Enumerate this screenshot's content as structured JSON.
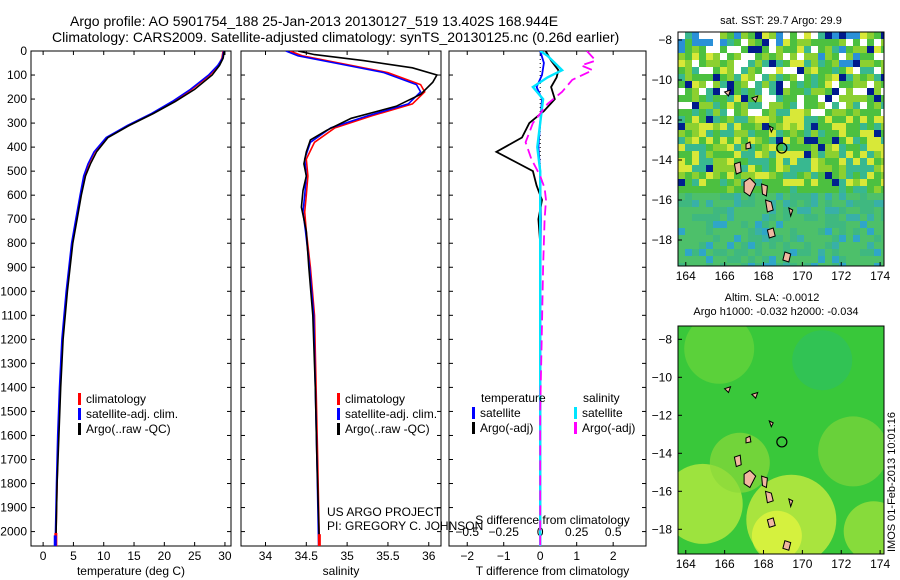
{
  "header": {
    "line1": "Argo profile: AO 5901754_188 25-Jan-2013 20130127_519 13.402S 168.944E",
    "line2": "Climatology: CARS2009. Satellite-adjusted climatology: synTS_20130125.nc (0.26d earlier)"
  },
  "colors": {
    "climatology": "#ff0000",
    "satellite": "#0000ff",
    "argo": "#000000",
    "sat_salinity": "#00e5ff",
    "argo_salinity": "#ff00ff"
  },
  "credit": {
    "line1": "US ARGO PROJECT",
    "line2": "PI: GREGORY C. JOHNSON"
  },
  "footer_stamp": "IMOS 01-Feb-2013 10:01:16",
  "chart_data": [
    {
      "type": "line",
      "id": "temperature",
      "xlabel": "temperature (deg C)",
      "ylabel": "",
      "xlim": [
        -2,
        31
      ],
      "ylim": [
        2060,
        0
      ],
      "xticks": [
        0,
        5,
        10,
        15,
        20,
        25,
        30
      ],
      "xtick_labels": [
        "0",
        "5",
        "10",
        "15",
        "20",
        "25",
        "30"
      ],
      "yticks": [
        0,
        100,
        200,
        300,
        400,
        500,
        600,
        700,
        800,
        900,
        1000,
        1100,
        1200,
        1300,
        1400,
        1500,
        1600,
        1700,
        1800,
        1900,
        2000
      ],
      "ytick_labels": [
        "0",
        "100",
        "200",
        "300",
        "400",
        "500",
        "600",
        "700",
        "800",
        "900",
        "1000",
        "1100",
        "1200",
        "1300",
        "1400",
        "1500",
        "1600",
        "1700",
        "1800",
        "1900",
        "2000"
      ],
      "legend": [
        "climatology",
        "satellite-adj. clim.",
        "Argo(..raw -QC)"
      ],
      "series": [
        {
          "name": "climatology",
          "color": "#ff0000",
          "values": [
            [
              29.7,
              0
            ],
            [
              29.5,
              30
            ],
            [
              28.9,
              60
            ],
            [
              27.5,
              100
            ],
            [
              24.5,
              160
            ],
            [
              21.5,
              210
            ],
            [
              18,
              260
            ],
            [
              14,
              310
            ],
            [
              10.5,
              360
            ],
            [
              8.5,
              420
            ],
            [
              7.5,
              470
            ],
            [
              6.8,
              520
            ],
            [
              6.2,
              600
            ],
            [
              5.5,
              700
            ],
            [
              4.8,
              800
            ],
            [
              3.9,
              1000
            ],
            [
              3.2,
              1200
            ],
            [
              2.8,
              1400
            ],
            [
              2.5,
              1600
            ],
            [
              2.3,
              1800
            ],
            [
              2.1,
              2060
            ]
          ]
        },
        {
          "name": "satellite-adj. clim.",
          "color": "#0000ff",
          "values": [
            [
              29.8,
              0
            ],
            [
              29.6,
              30
            ],
            [
              28.8,
              60
            ],
            [
              27.3,
              100
            ],
            [
              24.3,
              160
            ],
            [
              21.3,
              210
            ],
            [
              17.9,
              260
            ],
            [
              13.9,
              310
            ],
            [
              10.4,
              360
            ],
            [
              8.4,
              420
            ],
            [
              7.4,
              470
            ],
            [
              6.7,
              520
            ],
            [
              6.1,
              600
            ],
            [
              5.4,
              700
            ],
            [
              4.7,
              800
            ],
            [
              3.8,
              1000
            ],
            [
              3.1,
              1200
            ],
            [
              2.7,
              1400
            ],
            [
              2.4,
              1600
            ],
            [
              2.2,
              1800
            ],
            [
              2.0,
              2060
            ]
          ]
        },
        {
          "name": "Argo(..raw -QC)",
          "color": "#000000",
          "values": [
            [
              29.9,
              0
            ],
            [
              29.7,
              30
            ],
            [
              29.1,
              60
            ],
            [
              27.9,
              100
            ],
            [
              25,
              160
            ],
            [
              21.8,
              210
            ],
            [
              18.2,
              260
            ],
            [
              14.2,
              310
            ],
            [
              10.7,
              360
            ],
            [
              8.8,
              420
            ],
            [
              7.8,
              470
            ],
            [
              7,
              520
            ],
            [
              6.3,
              600
            ],
            [
              5.6,
              700
            ],
            [
              4.9,
              800
            ],
            [
              4,
              1000
            ],
            [
              3.3,
              1200
            ],
            [
              2.9,
              1400
            ],
            [
              2.6,
              1600
            ],
            [
              2.3,
              1800
            ],
            [
              2.1,
              2060
            ]
          ]
        }
      ],
      "point_marks": [
        {
          "color": "#ff0000",
          "x": 2.1,
          "y": 2035
        },
        {
          "color": "#0000ff",
          "x": 2.0,
          "y": 2045
        }
      ]
    },
    {
      "type": "line",
      "id": "salinity",
      "xlabel": "salinity",
      "xlim": [
        33.7,
        36.15
      ],
      "ylim": [
        2060,
        0
      ],
      "xticks": [
        34,
        34.5,
        35,
        35.5,
        36
      ],
      "xtick_labels": [
        "34",
        "34.5",
        "35",
        "35.5",
        "36"
      ],
      "yticks": [
        0,
        100,
        200,
        300,
        400,
        500,
        600,
        700,
        800,
        900,
        1000,
        1100,
        1200,
        1300,
        1400,
        1500,
        1600,
        1700,
        1800,
        1900,
        2000
      ],
      "legend": [
        "climatology",
        "satellite-adj. clim.",
        "Argo(..raw -QC)"
      ],
      "series": [
        {
          "name": "climatology",
          "color": "#ff0000",
          "values": [
            [
              34.3,
              0
            ],
            [
              34.45,
              20
            ],
            [
              34.9,
              50
            ],
            [
              35.5,
              90
            ],
            [
              35.9,
              140
            ],
            [
              35.95,
              170
            ],
            [
              35.8,
              220
            ],
            [
              35.3,
              270
            ],
            [
              34.85,
              320
            ],
            [
              34.6,
              380
            ],
            [
              34.5,
              450
            ],
            [
              34.52,
              520
            ],
            [
              34.5,
              600
            ],
            [
              34.48,
              670
            ],
            [
              34.5,
              750
            ],
            [
              34.55,
              900
            ],
            [
              34.6,
              1100
            ],
            [
              34.62,
              1400
            ],
            [
              34.64,
              1700
            ],
            [
              34.66,
              2060
            ]
          ]
        },
        {
          "name": "satellite-adj. clim.",
          "color": "#0000ff",
          "values": [
            [
              34.25,
              0
            ],
            [
              34.4,
              20
            ],
            [
              34.85,
              50
            ],
            [
              35.45,
              90
            ],
            [
              35.85,
              140
            ],
            [
              35.9,
              170
            ],
            [
              35.75,
              220
            ],
            [
              35.25,
              270
            ],
            [
              34.8,
              320
            ],
            [
              34.55,
              380
            ],
            [
              34.48,
              450
            ],
            [
              34.5,
              520
            ],
            [
              34.48,
              600
            ],
            [
              34.46,
              670
            ],
            [
              34.49,
              750
            ],
            [
              34.54,
              900
            ],
            [
              34.59,
              1100
            ],
            [
              34.61,
              1400
            ],
            [
              34.63,
              1700
            ],
            [
              34.65,
              2060
            ]
          ]
        },
        {
          "name": "Argo(..raw -QC)",
          "color": "#000000",
          "values": [
            [
              34.4,
              0
            ],
            [
              34.6,
              15
            ],
            [
              35.2,
              40
            ],
            [
              35.8,
              70
            ],
            [
              36.1,
              100
            ],
            [
              36.05,
              130
            ],
            [
              35.9,
              180
            ],
            [
              35.6,
              230
            ],
            [
              35.05,
              280
            ],
            [
              34.75,
              330
            ],
            [
              34.55,
              370
            ],
            [
              34.5,
              420
            ],
            [
              34.47,
              470
            ],
            [
              34.5,
              520
            ],
            [
              34.46,
              580
            ],
            [
              34.44,
              650
            ],
            [
              34.47,
              700
            ],
            [
              34.5,
              750
            ],
            [
              34.53,
              900
            ],
            [
              34.58,
              1100
            ],
            [
              34.61,
              1400
            ],
            [
              34.63,
              1700
            ],
            [
              34.66,
              2060
            ]
          ]
        }
      ],
      "point_marks": [
        {
          "color": "#ff0000",
          "x": 34.66,
          "y": 2040
        }
      ]
    },
    {
      "type": "line",
      "id": "difference",
      "xlabel": "T difference from climatology",
      "xlabel_top": "S difference from climatology",
      "xlim": [
        -2.5,
        2.9
      ],
      "ylim": [
        2060,
        0
      ],
      "xticks": [
        -2,
        -1,
        0,
        1,
        2
      ],
      "xtick_labels": [
        "−2",
        "−1",
        "0",
        "1",
        "2"
      ],
      "s_ticks": [
        -0.5,
        -0.25,
        0,
        0.25,
        0.5
      ],
      "s_tick_labels": [
        "−0.5",
        "−0.25",
        "0",
        "0.25",
        "0.5"
      ],
      "legend_headers": [
        "temperature",
        "salinity"
      ],
      "legend_entries": [
        "satellite",
        "Argo(-adj)",
        "satellite",
        "Argo(-adj)"
      ],
      "series": [
        {
          "name": "T satellite",
          "color": "#0000ff",
          "values": [
            [
              0,
              0
            ],
            [
              0.1,
              50
            ],
            [
              0.05,
              100
            ],
            [
              -0.1,
              150
            ],
            [
              0.05,
              200
            ],
            [
              0,
              300
            ],
            [
              -0.05,
              400
            ],
            [
              0,
              500
            ],
            [
              0.02,
              700
            ],
            [
              0,
              1000
            ],
            [
              0,
              1500
            ],
            [
              0,
              2060
            ]
          ]
        },
        {
          "name": "T Argo(-adj)",
          "color": "#000000",
          "values": [
            [
              0.15,
              0
            ],
            [
              0.3,
              40
            ],
            [
              0.5,
              80
            ],
            [
              0.45,
              110
            ],
            [
              0.3,
              150
            ],
            [
              0.4,
              200
            ],
            [
              0.1,
              250
            ],
            [
              -0.3,
              300
            ],
            [
              -0.5,
              360
            ],
            [
              -1.2,
              420
            ],
            [
              -0.7,
              460
            ],
            [
              -0.2,
              500
            ],
            [
              -0.1,
              560
            ],
            [
              0.05,
              620
            ],
            [
              -0.05,
              700
            ],
            [
              0,
              800
            ],
            [
              0,
              1000
            ],
            [
              0,
              1500
            ],
            [
              0,
              2060
            ]
          ]
        },
        {
          "name": "S satellite",
          "color": "#00e5ff",
          "values": [
            [
              0,
              0
            ],
            [
              0.05,
              20
            ],
            [
              0.1,
              50
            ],
            [
              0.15,
              80
            ],
            [
              0.05,
              110
            ],
            [
              -0.05,
              150
            ],
            [
              0.02,
              200
            ],
            [
              0,
              300
            ],
            [
              -0.02,
              400
            ],
            [
              0,
              500
            ],
            [
              0,
              700
            ],
            [
              0,
              1000
            ],
            [
              0,
              1500
            ],
            [
              0,
              2060
            ]
          ]
        },
        {
          "name": "S Argo(-adj)",
          "color": "#ff00ff",
          "values": [
            [
              0.32,
              0
            ],
            [
              0.38,
              40
            ],
            [
              0.28,
              60
            ],
            [
              0.36,
              80
            ],
            [
              0.22,
              120
            ],
            [
              0.15,
              170
            ],
            [
              0.05,
              220
            ],
            [
              -0.05,
              300
            ],
            [
              -0.1,
              380
            ],
            [
              -0.06,
              450
            ],
            [
              0,
              520
            ],
            [
              0.03,
              570
            ],
            [
              0.04,
              620
            ],
            [
              0.03,
              700
            ],
            [
              0.02,
              900
            ],
            [
              0.01,
              1200
            ],
            [
              0,
              1500
            ],
            [
              0,
              2060
            ]
          ]
        }
      ]
    },
    {
      "type": "heatmap",
      "id": "sst_map",
      "title": "sat. SST: 29.7  Argo: 29.9",
      "xlim": [
        163.6,
        174.2
      ],
      "ylim": [
        -19.3,
        -7.6
      ],
      "xticks": [
        164,
        166,
        168,
        170,
        172,
        174
      ],
      "xtick_labels": [
        "164",
        "166",
        "168",
        "170",
        "172",
        "174"
      ],
      "yticks": [
        -8,
        -10,
        -12,
        -14,
        -16,
        -18
      ],
      "ytick_labels": [
        "−8",
        "−10",
        "−12",
        "−14",
        "−16",
        "−18"
      ],
      "marker": {
        "lon": 168.944,
        "lat": -13.402
      }
    },
    {
      "type": "heatmap",
      "id": "sla_map",
      "title": "Altim. SLA: -0.0012",
      "title2": "Argo h1000: -0.032  h2000: -0.034",
      "xlim": [
        163.6,
        174.2
      ],
      "ylim": [
        -19.3,
        -7.3
      ],
      "xticks": [
        164,
        166,
        168,
        170,
        172,
        174
      ],
      "xtick_labels": [
        "164",
        "166",
        "168",
        "170",
        "172",
        "174"
      ],
      "yticks": [
        -8,
        -10,
        -12,
        -14,
        -16,
        -18
      ],
      "ytick_labels": [
        "−8",
        "−10",
        "−12",
        "−14",
        "−16",
        "−18"
      ],
      "marker": {
        "lon": 168.944,
        "lat": -13.402
      }
    }
  ]
}
